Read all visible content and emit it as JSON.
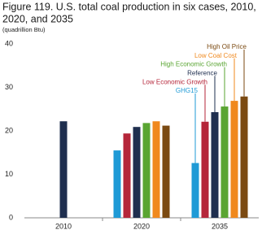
{
  "chart_data": {
    "type": "bar",
    "title": [
      "Figure 119. U.S. total coal production in six cases, 2010,",
      "2020, and 2035"
    ],
    "subtitle": "(quadrillion Btu)",
    "categories": [
      "2010",
      "2020",
      "2035"
    ],
    "series": [
      {
        "name": "GHG15",
        "color": "#1f9ad6",
        "values": [
          null,
          15.5,
          12.6
        ]
      },
      {
        "name": "Low Economic Growth",
        "color": "#b5263a",
        "values": [
          null,
          19.4,
          22.1
        ]
      },
      {
        "name": "Reference",
        "color": "#1f2f4f",
        "values": [
          22.2,
          20.9,
          24.3
        ]
      },
      {
        "name": "High Economic Growth",
        "color": "#5aa532",
        "values": [
          null,
          21.8,
          25.6
        ]
      },
      {
        "name": "Low Coal Cost",
        "color": "#f0891e",
        "values": [
          null,
          22.2,
          26.9
        ]
      },
      {
        "name": "High Oil Price",
        "color": "#7b4a12",
        "values": [
          null,
          21.2,
          27.9
        ]
      }
    ],
    "ylim": [
      0,
      40
    ],
    "yticks": [
      0,
      10,
      20,
      30,
      40
    ],
    "grid": false
  }
}
